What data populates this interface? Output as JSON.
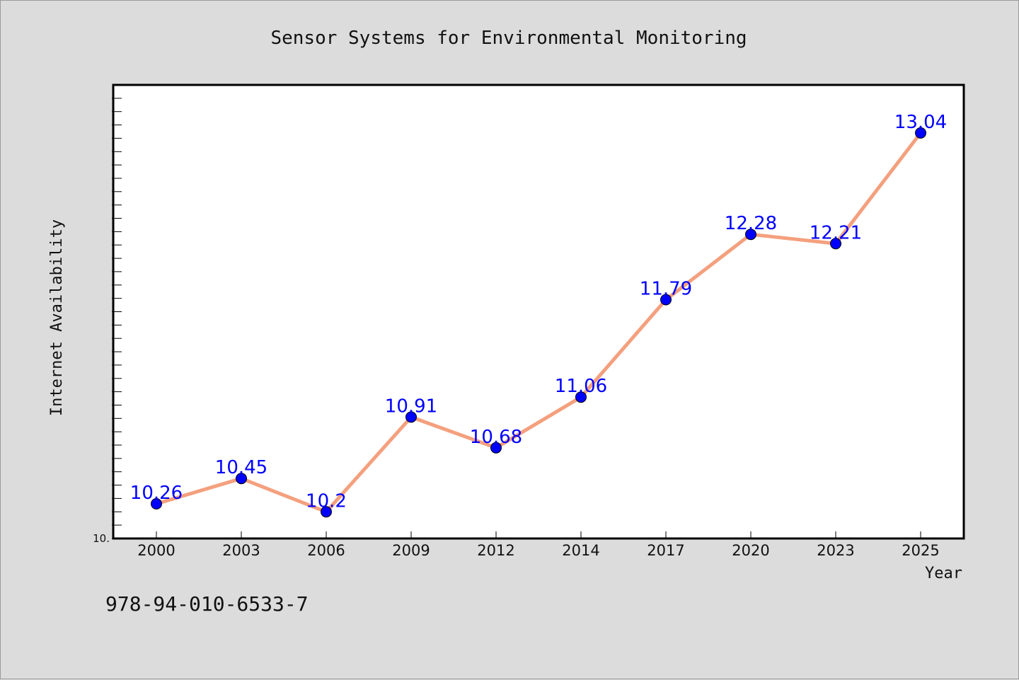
{
  "chart_data": {
    "type": "line",
    "title": "Sensor Systems for Environmental Monitoring",
    "xlabel": "Year",
    "ylabel": "Internet Availability",
    "categories": [
      "2000",
      "2003",
      "2006",
      "2009",
      "2012",
      "2014",
      "2017",
      "2020",
      "2023",
      "2025"
    ],
    "series": [
      {
        "values": [
          10.26,
          10.45,
          10.2,
          10.91,
          10.68,
          11.06,
          11.79,
          12.28,
          12.21,
          13.04
        ],
        "data_labels": [
          "10.26",
          "10.45",
          "10.2",
          "10.91",
          "10.68",
          "11.06",
          "11.79",
          "12.28",
          "12.21",
          "13.04"
        ]
      }
    ],
    "y_axis_min_label": "10.",
    "ylim": [
      10.0,
      13.4
    ],
    "grid": false,
    "line_color": "#f4a07e",
    "marker_color": "#0000ff",
    "label_color": "#0000ff"
  },
  "footer": {
    "isbn": "978-94-010-6533-7"
  }
}
